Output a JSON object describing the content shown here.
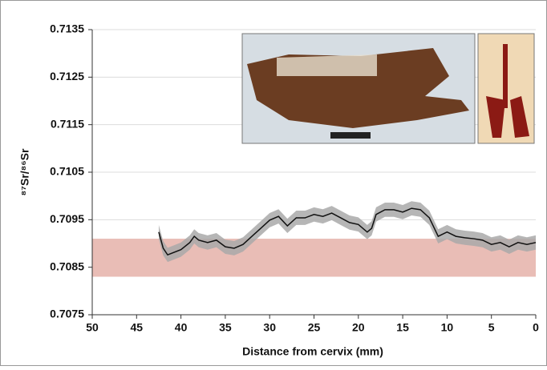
{
  "chart_data": {
    "type": "line",
    "x_label": "Distance from cervix (mm)",
    "y_label": "⁸⁷Sr/⁸⁶Sr",
    "x": [
      42.5,
      42,
      41.5,
      40,
      39,
      38.5,
      38,
      37,
      36,
      35,
      34,
      33,
      32,
      31,
      30,
      29,
      28,
      27,
      26,
      25,
      24,
      23,
      22,
      21,
      20,
      19,
      18.5,
      18,
      17,
      16,
      15,
      14,
      13,
      12,
      11,
      10,
      9,
      8,
      7,
      6,
      5,
      4,
      3,
      2,
      1,
      0
    ],
    "values": [
      0.70924,
      0.7089,
      0.70876,
      0.70887,
      0.70902,
      0.70915,
      0.70907,
      0.70902,
      0.70907,
      0.70893,
      0.7089,
      0.70898,
      0.70915,
      0.70932,
      0.70949,
      0.70957,
      0.70937,
      0.70954,
      0.70954,
      0.70961,
      0.70957,
      0.70964,
      0.70954,
      0.70944,
      0.7094,
      0.70924,
      0.70932,
      0.70961,
      0.70971,
      0.70971,
      0.70966,
      0.70974,
      0.70971,
      0.70954,
      0.70915,
      0.70924,
      0.70915,
      0.70912,
      0.7091,
      0.70907,
      0.70898,
      0.70902,
      0.70893,
      0.70902,
      0.70898,
      0.70902
    ],
    "color": "#111111",
    "error": 0.00015,
    "error_color": "#a9a9a9",
    "band": [
      0.7083,
      0.7091
    ],
    "band_color": "#e9bdb6",
    "xlim": [
      50,
      0
    ],
    "xticks": [
      50,
      45,
      40,
      35,
      30,
      25,
      20,
      15,
      10,
      5,
      0
    ],
    "ylim": [
      0.7075,
      0.7135
    ],
    "yticks": [
      0.7075,
      0.7085,
      0.7095,
      0.7105,
      0.7115,
      0.7125,
      0.7135
    ],
    "grid": true
  }
}
